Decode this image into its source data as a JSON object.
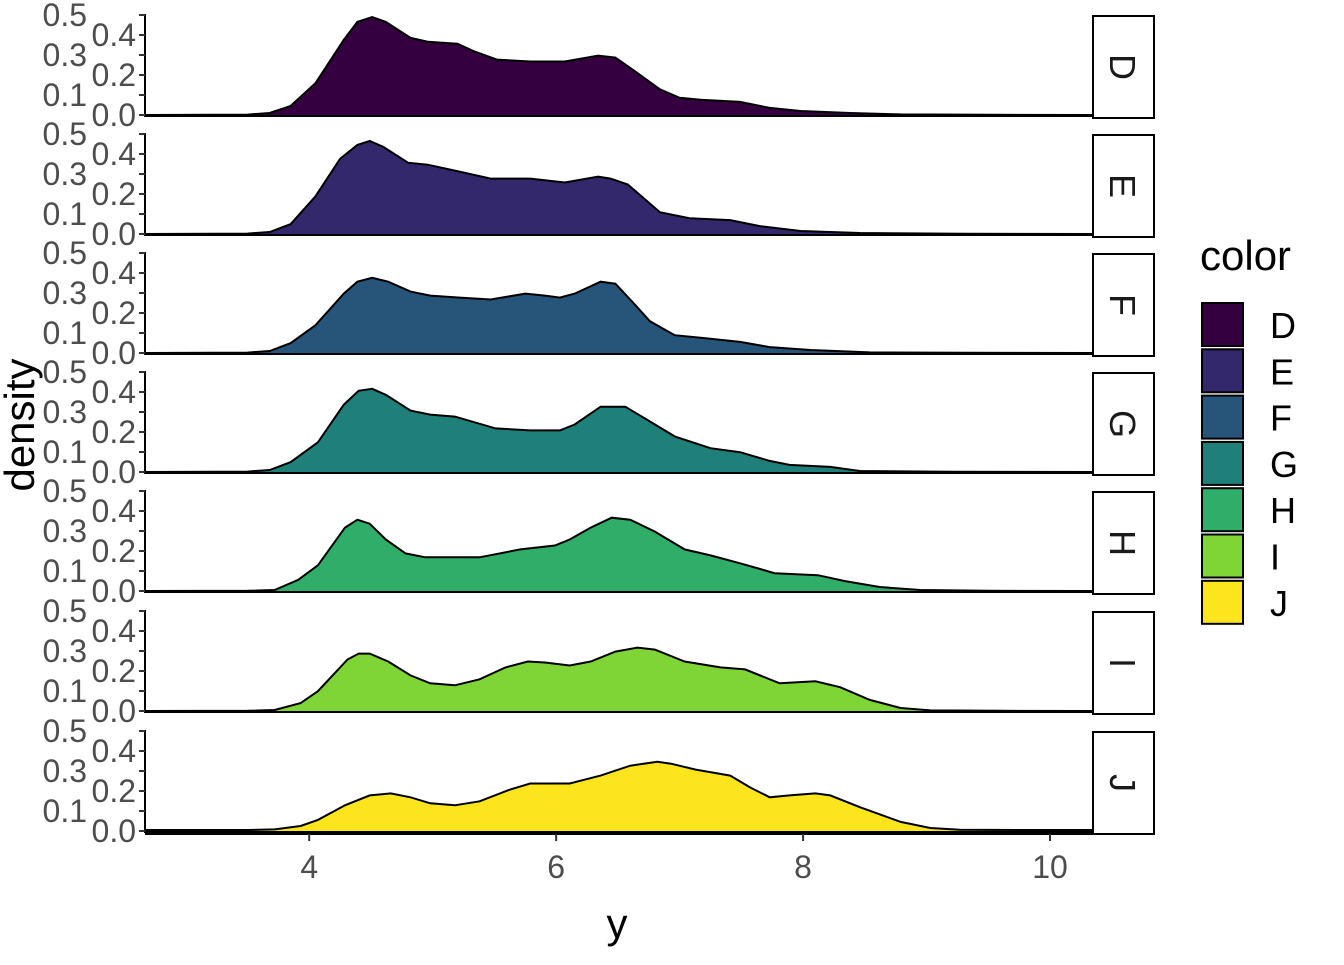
{
  "chart_data": {
    "type": "area",
    "subtype": "faceted density",
    "title": "",
    "xlabel": "y",
    "ylabel": "density",
    "xlim": [
      2.67,
      10.34
    ],
    "ylim": [
      0,
      0.5
    ],
    "x_ticks": [
      4,
      6,
      8,
      10
    ],
    "x_tick_labels": [
      "4",
      "6",
      "8",
      "10"
    ],
    "y_ticks": [
      0,
      0.1,
      0.2,
      0.3,
      0.4,
      0.5
    ],
    "y_tick_labels": [
      "0.0",
      "0.1",
      "0.2",
      "0.3",
      "0.4",
      "0.5"
    ],
    "grid": false,
    "legend": {
      "title": "color",
      "placement": "right",
      "entries": [
        "D",
        "E",
        "F",
        "G",
        "H",
        "I",
        "J"
      ]
    },
    "series": [
      {
        "name": "D",
        "color": "#35003F",
        "points": [
          [
            2.67,
            0
          ],
          [
            3.5,
            0.002
          ],
          [
            3.68,
            0.01
          ],
          [
            3.85,
            0.046
          ],
          [
            4.05,
            0.16
          ],
          [
            4.28,
            0.38
          ],
          [
            4.39,
            0.47
          ],
          [
            4.51,
            0.495
          ],
          [
            4.62,
            0.47
          ],
          [
            4.82,
            0.39
          ],
          [
            4.96,
            0.37
          ],
          [
            5.2,
            0.36
          ],
          [
            5.34,
            0.32
          ],
          [
            5.52,
            0.28
          ],
          [
            5.79,
            0.27
          ],
          [
            6.07,
            0.27
          ],
          [
            6.34,
            0.3
          ],
          [
            6.48,
            0.29
          ],
          [
            6.64,
            0.22
          ],
          [
            6.84,
            0.13
          ],
          [
            7.0,
            0.087
          ],
          [
            7.17,
            0.077
          ],
          [
            7.49,
            0.066
          ],
          [
            7.73,
            0.036
          ],
          [
            7.98,
            0.02
          ],
          [
            8.38,
            0.01
          ],
          [
            8.79,
            0.003
          ],
          [
            9.5,
            0.001
          ],
          [
            10.34,
            0
          ]
        ]
      },
      {
        "name": "E",
        "color": "#33286C",
        "points": [
          [
            2.67,
            0
          ],
          [
            3.5,
            0.002
          ],
          [
            3.68,
            0.01
          ],
          [
            3.85,
            0.05
          ],
          [
            4.05,
            0.19
          ],
          [
            4.25,
            0.38
          ],
          [
            4.39,
            0.45
          ],
          [
            4.49,
            0.47
          ],
          [
            4.6,
            0.44
          ],
          [
            4.8,
            0.36
          ],
          [
            4.96,
            0.35
          ],
          [
            5.18,
            0.32
          ],
          [
            5.47,
            0.28
          ],
          [
            5.79,
            0.28
          ],
          [
            6.07,
            0.26
          ],
          [
            6.34,
            0.29
          ],
          [
            6.44,
            0.28
          ],
          [
            6.58,
            0.25
          ],
          [
            6.84,
            0.11
          ],
          [
            7.08,
            0.08
          ],
          [
            7.41,
            0.07
          ],
          [
            7.65,
            0.04
          ],
          [
            7.98,
            0.015
          ],
          [
            8.46,
            0.005
          ],
          [
            9.3,
            0.001
          ],
          [
            10.34,
            0
          ]
        ]
      },
      {
        "name": "F",
        "color": "#27557A",
        "points": [
          [
            2.67,
            0
          ],
          [
            3.5,
            0.002
          ],
          [
            3.68,
            0.01
          ],
          [
            3.85,
            0.05
          ],
          [
            4.05,
            0.14
          ],
          [
            4.28,
            0.3
          ],
          [
            4.39,
            0.36
          ],
          [
            4.51,
            0.38
          ],
          [
            4.64,
            0.36
          ],
          [
            4.82,
            0.31
          ],
          [
            4.98,
            0.29
          ],
          [
            5.22,
            0.28
          ],
          [
            5.47,
            0.27
          ],
          [
            5.75,
            0.3
          ],
          [
            5.91,
            0.29
          ],
          [
            6.03,
            0.28
          ],
          [
            6.15,
            0.3
          ],
          [
            6.36,
            0.36
          ],
          [
            6.48,
            0.35
          ],
          [
            6.6,
            0.27
          ],
          [
            6.76,
            0.16
          ],
          [
            6.96,
            0.09
          ],
          [
            7.17,
            0.077
          ],
          [
            7.49,
            0.056
          ],
          [
            7.73,
            0.03
          ],
          [
            8.06,
            0.015
          ],
          [
            8.54,
            0.003
          ],
          [
            9.3,
            0.001
          ],
          [
            10.34,
            0
          ]
        ]
      },
      {
        "name": "G",
        "color": "#1F7F79",
        "points": [
          [
            2.67,
            0
          ],
          [
            3.5,
            0.002
          ],
          [
            3.68,
            0.01
          ],
          [
            3.85,
            0.05
          ],
          [
            4.07,
            0.15
          ],
          [
            4.28,
            0.34
          ],
          [
            4.4,
            0.41
          ],
          [
            4.51,
            0.42
          ],
          [
            4.62,
            0.39
          ],
          [
            4.82,
            0.31
          ],
          [
            4.98,
            0.29
          ],
          [
            5.18,
            0.28
          ],
          [
            5.51,
            0.22
          ],
          [
            5.79,
            0.21
          ],
          [
            6.03,
            0.21
          ],
          [
            6.15,
            0.24
          ],
          [
            6.36,
            0.33
          ],
          [
            6.56,
            0.33
          ],
          [
            6.72,
            0.27
          ],
          [
            6.96,
            0.18
          ],
          [
            7.25,
            0.12
          ],
          [
            7.49,
            0.1
          ],
          [
            7.73,
            0.056
          ],
          [
            7.89,
            0.036
          ],
          [
            8.22,
            0.026
          ],
          [
            8.46,
            0.005
          ],
          [
            9.2,
            0.001
          ],
          [
            10.34,
            0
          ]
        ]
      },
      {
        "name": "H",
        "color": "#30AD69",
        "points": [
          [
            2.67,
            0
          ],
          [
            3.5,
            0.001
          ],
          [
            3.72,
            0.005
          ],
          [
            3.91,
            0.056
          ],
          [
            4.07,
            0.13
          ],
          [
            4.29,
            0.32
          ],
          [
            4.39,
            0.36
          ],
          [
            4.49,
            0.34
          ],
          [
            4.62,
            0.26
          ],
          [
            4.78,
            0.19
          ],
          [
            4.94,
            0.17
          ],
          [
            5.38,
            0.17
          ],
          [
            5.71,
            0.21
          ],
          [
            5.99,
            0.23
          ],
          [
            6.11,
            0.26
          ],
          [
            6.28,
            0.32
          ],
          [
            6.45,
            0.37
          ],
          [
            6.6,
            0.36
          ],
          [
            6.8,
            0.3
          ],
          [
            7.04,
            0.21
          ],
          [
            7.25,
            0.18
          ],
          [
            7.49,
            0.14
          ],
          [
            7.77,
            0.09
          ],
          [
            8.12,
            0.08
          ],
          [
            8.34,
            0.05
          ],
          [
            8.62,
            0.02
          ],
          [
            8.95,
            0.005
          ],
          [
            9.5,
            0.001
          ],
          [
            10.34,
            0
          ]
        ]
      },
      {
        "name": "I",
        "color": "#7ED535",
        "points": [
          [
            2.67,
            0
          ],
          [
            3.5,
            0.001
          ],
          [
            3.72,
            0.005
          ],
          [
            3.93,
            0.04
          ],
          [
            4.07,
            0.1
          ],
          [
            4.31,
            0.26
          ],
          [
            4.4,
            0.29
          ],
          [
            4.49,
            0.29
          ],
          [
            4.64,
            0.25
          ],
          [
            4.82,
            0.18
          ],
          [
            4.98,
            0.14
          ],
          [
            5.18,
            0.13
          ],
          [
            5.38,
            0.16
          ],
          [
            5.59,
            0.22
          ],
          [
            5.77,
            0.25
          ],
          [
            5.91,
            0.245
          ],
          [
            6.11,
            0.23
          ],
          [
            6.28,
            0.25
          ],
          [
            6.48,
            0.3
          ],
          [
            6.66,
            0.32
          ],
          [
            6.8,
            0.31
          ],
          [
            7.04,
            0.25
          ],
          [
            7.33,
            0.22
          ],
          [
            7.53,
            0.21
          ],
          [
            7.81,
            0.14
          ],
          [
            8.1,
            0.15
          ],
          [
            8.3,
            0.12
          ],
          [
            8.54,
            0.056
          ],
          [
            8.79,
            0.015
          ],
          [
            9.03,
            0.003
          ],
          [
            9.6,
            0.001
          ],
          [
            10.34,
            0
          ]
        ]
      },
      {
        "name": "J",
        "color": "#FDE51E",
        "points": [
          [
            2.67,
            0.005
          ],
          [
            3.5,
            0.005
          ],
          [
            3.72,
            0.008
          ],
          [
            3.93,
            0.025
          ],
          [
            4.07,
            0.056
          ],
          [
            4.29,
            0.13
          ],
          [
            4.49,
            0.18
          ],
          [
            4.66,
            0.19
          ],
          [
            4.82,
            0.17
          ],
          [
            4.98,
            0.14
          ],
          [
            5.18,
            0.13
          ],
          [
            5.38,
            0.15
          ],
          [
            5.63,
            0.21
          ],
          [
            5.79,
            0.24
          ],
          [
            6.11,
            0.24
          ],
          [
            6.36,
            0.28
          ],
          [
            6.6,
            0.33
          ],
          [
            6.82,
            0.35
          ],
          [
            6.93,
            0.34
          ],
          [
            7.13,
            0.31
          ],
          [
            7.41,
            0.28
          ],
          [
            7.57,
            0.22
          ],
          [
            7.73,
            0.17
          ],
          [
            7.89,
            0.18
          ],
          [
            8.1,
            0.19
          ],
          [
            8.22,
            0.18
          ],
          [
            8.46,
            0.12
          ],
          [
            8.79,
            0.046
          ],
          [
            9.03,
            0.015
          ],
          [
            9.27,
            0.006
          ],
          [
            9.8,
            0.005
          ],
          [
            10.34,
            0.005
          ]
        ]
      }
    ]
  }
}
